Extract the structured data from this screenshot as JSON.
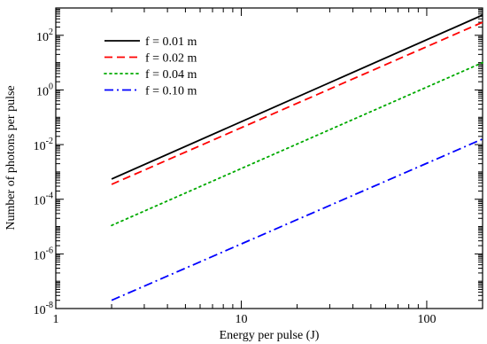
{
  "chart_data": {
    "type": "line",
    "xlabel": "Energy per pulse (J)",
    "ylabel": "Number of photons per pulse",
    "x_scale": "log",
    "y_scale": "log",
    "xlim": [
      1,
      200
    ],
    "ylim": [
      1e-08,
      1000
    ],
    "x_ticks": [
      {
        "value": 1,
        "label": "1"
      },
      {
        "value": 10,
        "label": "10"
      },
      {
        "value": 100,
        "label": "100"
      }
    ],
    "y_ticks": [
      {
        "value": 1e-08,
        "base": "10",
        "exp": "-8"
      },
      {
        "value": 1e-06,
        "base": "10",
        "exp": "-6"
      },
      {
        "value": 0.0001,
        "base": "10",
        "exp": "-4"
      },
      {
        "value": 0.01,
        "base": "10",
        "exp": "-2"
      },
      {
        "value": 1,
        "base": "10",
        "exp": "0"
      },
      {
        "value": 100,
        "base": "10",
        "exp": "2"
      }
    ],
    "grid": false,
    "legend_position": "top-left",
    "series": [
      {
        "name": "f = 0.01 m",
        "color": "#000000",
        "style": "solid",
        "x": [
          2,
          200
        ],
        "y": [
          0.00055,
          550
        ]
      },
      {
        "name": "f = 0.02 m",
        "color": "#ff0000",
        "style": "dashed",
        "x": [
          2,
          200
        ],
        "y": [
          0.00035,
          300
        ]
      },
      {
        "name": "f = 0.04 m",
        "color": "#00aa00",
        "style": "dotted",
        "x": [
          2,
          200
        ],
        "y": [
          1.1e-05,
          10
        ]
      },
      {
        "name": "f = 0.10 m",
        "color": "#0000ff",
        "style": "dashdot",
        "x": [
          2,
          200
        ],
        "y": [
          2e-08,
          0.016
        ]
      }
    ]
  }
}
